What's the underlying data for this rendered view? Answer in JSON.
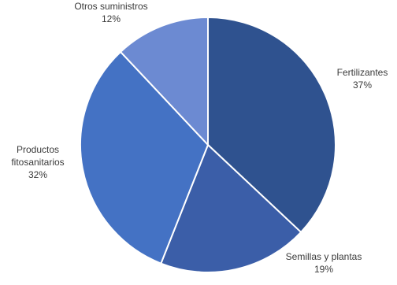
{
  "chart_data": {
    "type": "pie",
    "title": "",
    "slices": [
      {
        "name": "Fertilizantes",
        "value": 37,
        "label_lines": [
          "Fertilizantes"
        ],
        "value_label": "37%",
        "color": "#2f528f"
      },
      {
        "name": "Semillas y plantas",
        "value": 19,
        "label_lines": [
          "Semillas y plantas"
        ],
        "value_label": "19%",
        "color": "#3b5ea8"
      },
      {
        "name": "Productos fitosanitarios",
        "value": 32,
        "label_lines": [
          "Productos",
          "fitosanitarios"
        ],
        "value_label": "32%",
        "color": "#4472c4"
      },
      {
        "name": "Otros suministros",
        "value": 12,
        "label_lines": [
          "Otros suministros"
        ],
        "value_label": "12%",
        "color": "#6c8ad2"
      }
    ],
    "start_angle_deg": 0,
    "direction": "clockwise",
    "legend": "none"
  }
}
